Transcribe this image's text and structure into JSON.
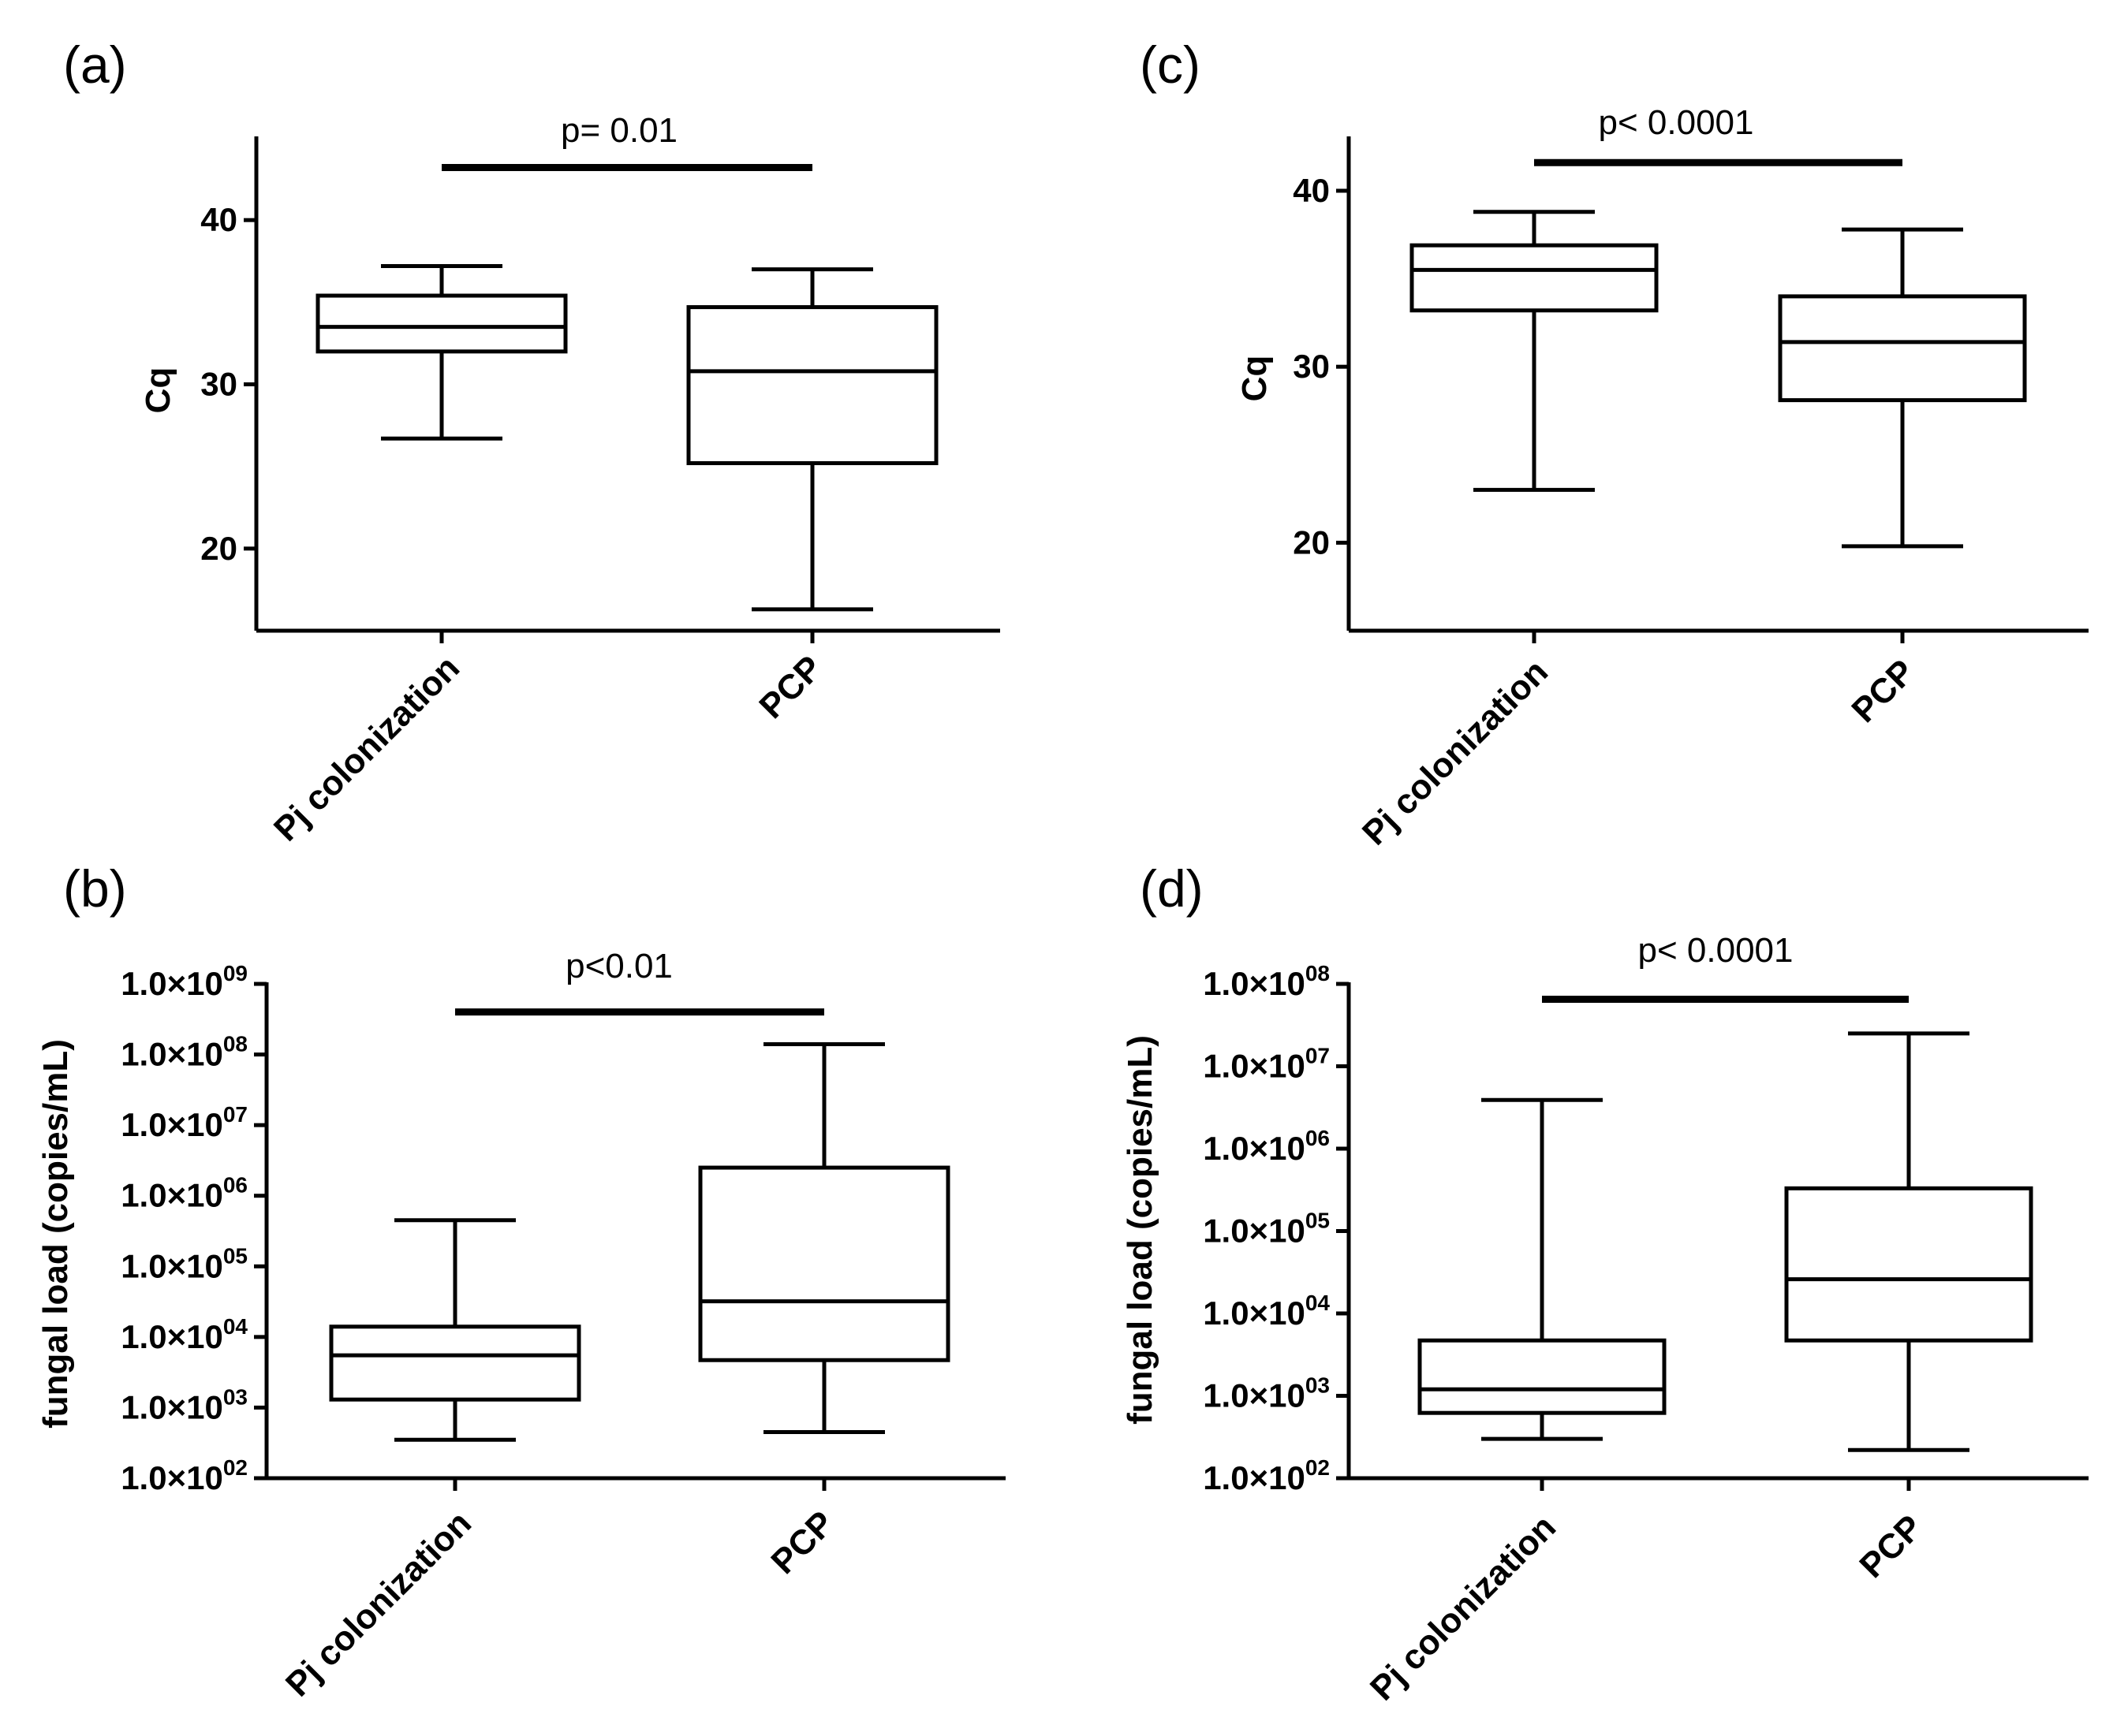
{
  "chart_data": [
    {
      "panel": "(a)",
      "type": "box",
      "scale": "linear",
      "title": "",
      "xlabel": "",
      "ylabel": "Cq",
      "ylim": [
        15,
        45
      ],
      "yticks": [
        20,
        30,
        40
      ],
      "ytick_labels": [
        "20",
        "30",
        "40"
      ],
      "categories": [
        "Pj colonization",
        "PCP"
      ],
      "boxes": [
        {
          "min": 26.7,
          "q1": 32.0,
          "median": 33.5,
          "q3": 35.4,
          "max": 37.2
        },
        {
          "min": 16.3,
          "q1": 25.2,
          "median": 30.8,
          "q3": 34.7,
          "max": 37.0
        }
      ],
      "significance": {
        "text": "p= 0.01",
        "y": 43.2
      }
    },
    {
      "panel": "(b)",
      "type": "box",
      "scale": "log",
      "title": "",
      "xlabel": "",
      "ylabel": "fungal load (copies/mL)",
      "ylim": [
        100,
        1000000000
      ],
      "yticks": [
        100,
        1000,
        10000,
        100000,
        1000000,
        10000000,
        100000000,
        1000000000
      ],
      "ytick_labels": [
        {
          "base": "1.0×10",
          "exp": "02"
        },
        {
          "base": "1.0×10",
          "exp": "03"
        },
        {
          "base": "1.0×10",
          "exp": "04"
        },
        {
          "base": "1.0×10",
          "exp": "05"
        },
        {
          "base": "1.0×10",
          "exp": "06"
        },
        {
          "base": "1.0×10",
          "exp": "07"
        },
        {
          "base": "1.0×10",
          "exp": "08"
        },
        {
          "base": "1.0×10",
          "exp": "09"
        }
      ],
      "categories": [
        "Pj colonization",
        "PCP"
      ],
      "boxes": [
        {
          "min": 350,
          "q1": 1300,
          "median": 5500,
          "q3": 14000,
          "max": 450000
        },
        {
          "min": 450,
          "q1": 4700,
          "median": 32000,
          "q3": 2500000,
          "max": 140000000
        }
      ],
      "significance": {
        "text": "p<0.01",
        "y": 400000000
      }
    },
    {
      "panel": "(c)",
      "type": "box",
      "scale": "linear",
      "title": "",
      "xlabel": "",
      "ylabel": "Cq",
      "ylim": [
        15,
        43
      ],
      "yticks": [
        20,
        30,
        40
      ],
      "ytick_labels": [
        "20",
        "30",
        "40"
      ],
      "categories": [
        "Pj colonization",
        "PCP"
      ],
      "boxes": [
        {
          "min": 23.0,
          "q1": 33.2,
          "median": 35.5,
          "q3": 36.9,
          "max": 38.8
        },
        {
          "min": 19.8,
          "q1": 28.1,
          "median": 31.4,
          "q3": 34.0,
          "max": 37.8
        }
      ],
      "significance": {
        "text": "p< 0.0001",
        "y": 41.6
      }
    },
    {
      "panel": "(d)",
      "type": "box",
      "scale": "log",
      "title": "",
      "xlabel": "",
      "ylabel": "fungal load (copies/mL)",
      "ylim": [
        100,
        100000000
      ],
      "yticks": [
        100,
        1000,
        10000,
        100000,
        1000000,
        10000000,
        100000000
      ],
      "ytick_labels": [
        {
          "base": "1.0×10",
          "exp": "02"
        },
        {
          "base": "1.0×10",
          "exp": "03"
        },
        {
          "base": "1.0×10",
          "exp": "04"
        },
        {
          "base": "1.0×10",
          "exp": "05"
        },
        {
          "base": "1.0×10",
          "exp": "06"
        },
        {
          "base": "1.0×10",
          "exp": "07"
        },
        {
          "base": "1.0×10",
          "exp": "08"
        }
      ],
      "categories": [
        "Pj colonization",
        "PCP"
      ],
      "boxes": [
        {
          "min": 300,
          "q1": 620,
          "median": 1200,
          "q3": 4700,
          "max": 3900000
        },
        {
          "min": 220,
          "q1": 4700,
          "median": 26000,
          "q3": 330000,
          "max": 25000000
        }
      ],
      "significance": {
        "text": "p< 0.0001",
        "y": 65000000
      }
    }
  ]
}
